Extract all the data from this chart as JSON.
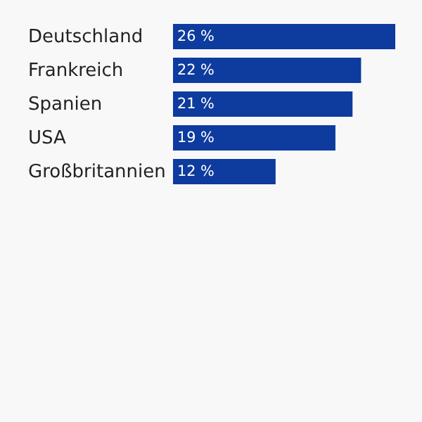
{
  "chart_data": {
    "type": "bar",
    "orientation": "horizontal",
    "categories": [
      "Deutschland",
      "Frankreich",
      "Spanien",
      "USA",
      "Großbritannien"
    ],
    "values": [
      26,
      22,
      21,
      19,
      12
    ],
    "value_labels": [
      "26 %",
      "22 %",
      "21 %",
      "19 %",
      "12 %"
    ],
    "color": "#0d3b9e"
  }
}
